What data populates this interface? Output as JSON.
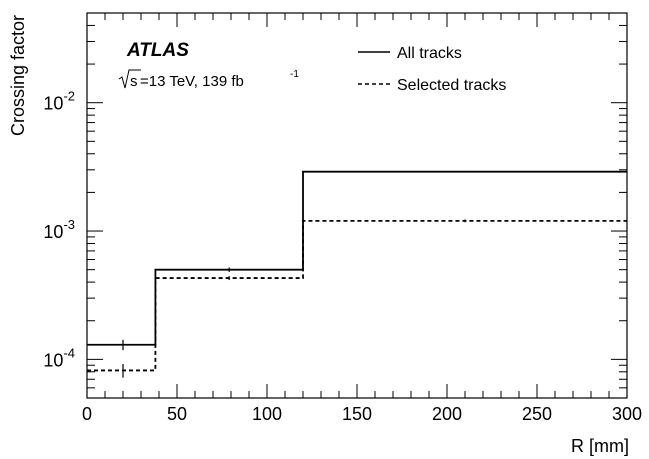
{
  "chart_data": {
    "type": "line",
    "step": true,
    "experiment": "ATLAS",
    "energy_label": "s",
    "energy_value": "=13 TeV, 139 fb",
    "lumi_sup": "-1",
    "xlabel": "R [mm]",
    "ylabel": "Crossing factor",
    "xlim": [
      0,
      300
    ],
    "ylim": [
      5e-05,
      0.05
    ],
    "yscale": "log",
    "x_ticks": [
      0,
      50,
      100,
      150,
      200,
      250,
      300
    ],
    "x_tick_labels": [
      "0",
      "50",
      "100",
      "150",
      "200",
      "250",
      "300"
    ],
    "y_ticks": [
      0.0001,
      0.001,
      0.01
    ],
    "y_tick_mantissa": [
      "10",
      "10",
      "10"
    ],
    "y_tick_exponent": [
      "-4",
      "-3",
      "-2"
    ],
    "legend_position": "top-right",
    "bin_edges": [
      0,
      38,
      120,
      300
    ],
    "bin_centers": [
      20,
      79,
      210
    ],
    "series": [
      {
        "name": "All tracks",
        "style": "solid",
        "values": [
          0.00013,
          0.0005,
          0.0029
        ],
        "errors": [
          1.2e-05,
          2e-05,
          4e-05
        ]
      },
      {
        "name": "Selected tracks",
        "style": "dashed",
        "values": [
          8.2e-05,
          0.00043,
          0.0012
        ],
        "errors": [
          1e-05,
          1.5e-05,
          3e-05
        ]
      }
    ]
  }
}
